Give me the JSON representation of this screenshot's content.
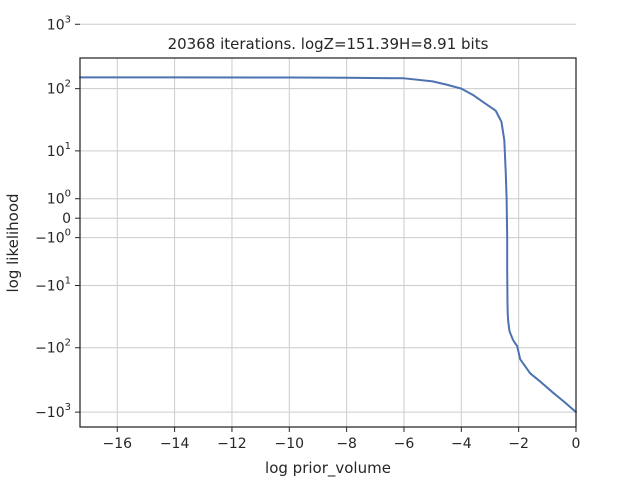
{
  "chart_data": {
    "type": "line",
    "title": "20368 iterations. logZ=151.39H=8.91 bits",
    "xlabel": "log prior_volume",
    "ylabel": "log likelihood",
    "xlim": [
      -17.3,
      0
    ],
    "yscale": "symlog",
    "grid": true,
    "xticks": [
      -16,
      -14,
      -12,
      -10,
      -8,
      -6,
      -4,
      -2,
      0
    ],
    "xtick_labels": [
      "−16",
      "−14",
      "−12",
      "−10",
      "−8",
      "−6",
      "−4",
      "−2",
      "0"
    ],
    "yticks": [
      {
        "value": 1000,
        "base": "10",
        "exp": "3",
        "sign": ""
      },
      {
        "value": 100,
        "base": "10",
        "exp": "2",
        "sign": ""
      },
      {
        "value": 10,
        "base": "10",
        "exp": "1",
        "sign": ""
      },
      {
        "value": 1,
        "base": "10",
        "exp": "0",
        "sign": ""
      },
      {
        "value": 0,
        "base": "0",
        "exp": "",
        "sign": ""
      },
      {
        "value": -1,
        "base": "10",
        "exp": "0",
        "sign": "−"
      },
      {
        "value": -10,
        "base": "10",
        "exp": "1",
        "sign": "−"
      },
      {
        "value": -100,
        "base": "10",
        "exp": "2",
        "sign": "−"
      },
      {
        "value": -1000,
        "base": "10",
        "exp": "3",
        "sign": "−"
      }
    ],
    "series": [
      {
        "color": "#4c72b0",
        "x": [
          -17.3,
          -14,
          -10,
          -8,
          -6,
          -5,
          -4.5,
          -4,
          -3.6,
          -3.2,
          -2.8,
          -2.6,
          -2.5,
          -2.45,
          -2.42,
          -2.41,
          -2.4,
          -2.4,
          -2.39,
          -2.38,
          -2.36,
          -2.32,
          -2.2,
          -2.05,
          -1.95,
          -1.6,
          -1.2,
          -0.8,
          -0.4,
          0
        ],
        "y": [
          150,
          150,
          149,
          148,
          145,
          130,
          115,
          100,
          80,
          60,
          45,
          30,
          15,
          4,
          1,
          0,
          -1,
          -5,
          -20,
          -30,
          -40,
          -55,
          -75,
          -95,
          -150,
          -250,
          -350,
          -500,
          -700,
          -1000
        ]
      }
    ]
  }
}
